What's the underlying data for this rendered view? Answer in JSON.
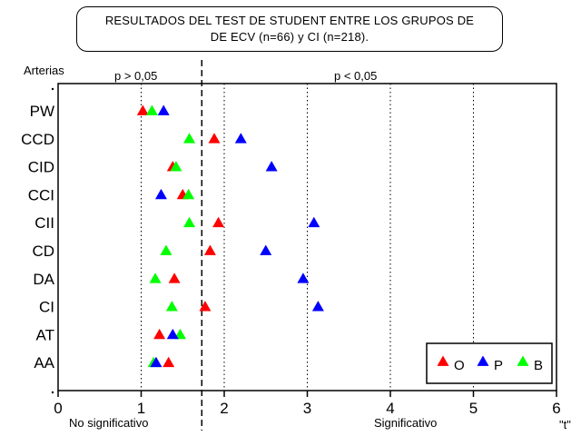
{
  "chart_data": {
    "type": "scatter",
    "title": "RESULTADOS DEL TEST DE STUDENT ENTRE LOS GRUPOS DE\nDE  ECV (n=66) y CI (n=218).",
    "ylabel": "Arterias",
    "xlabel": "\"t\"",
    "xlim": [
      0,
      6
    ],
    "xticks": [
      "0",
      "1",
      "2",
      "3",
      "4",
      "5",
      "6"
    ],
    "categories": [
      "PW",
      "CCD",
      "CID",
      "CCI",
      "CII",
      "CD",
      "DA",
      "CI",
      "AT",
      "AA"
    ],
    "series": [
      {
        "name": "O",
        "color": "#ff0000",
        "values": [
          1.02,
          1.88,
          1.38,
          1.5,
          1.93,
          1.83,
          1.4,
          1.77,
          1.22,
          1.33
        ]
      },
      {
        "name": "P",
        "color": "#0000ff",
        "values": [
          1.27,
          2.2,
          2.57,
          1.24,
          3.08,
          2.5,
          2.95,
          3.13,
          1.38,
          1.18
        ]
      },
      {
        "name": "B",
        "color": "#00ff00",
        "values": [
          1.13,
          1.58,
          1.42,
          1.57,
          1.58,
          1.3,
          1.17,
          1.37,
          1.47,
          1.15
        ]
      }
    ],
    "reference_lines": {
      "critical": 1.73,
      "dotted": [
        1.0,
        2.0,
        3.0,
        4.0,
        5.0
      ]
    },
    "annotations": {
      "top_left": "p  > 0,05",
      "top_right": "p  < 0,05",
      "bottom_left": "No significativo",
      "bottom_right": "Significativo"
    },
    "legend_position": "bottom-right",
    "grid": false
  }
}
